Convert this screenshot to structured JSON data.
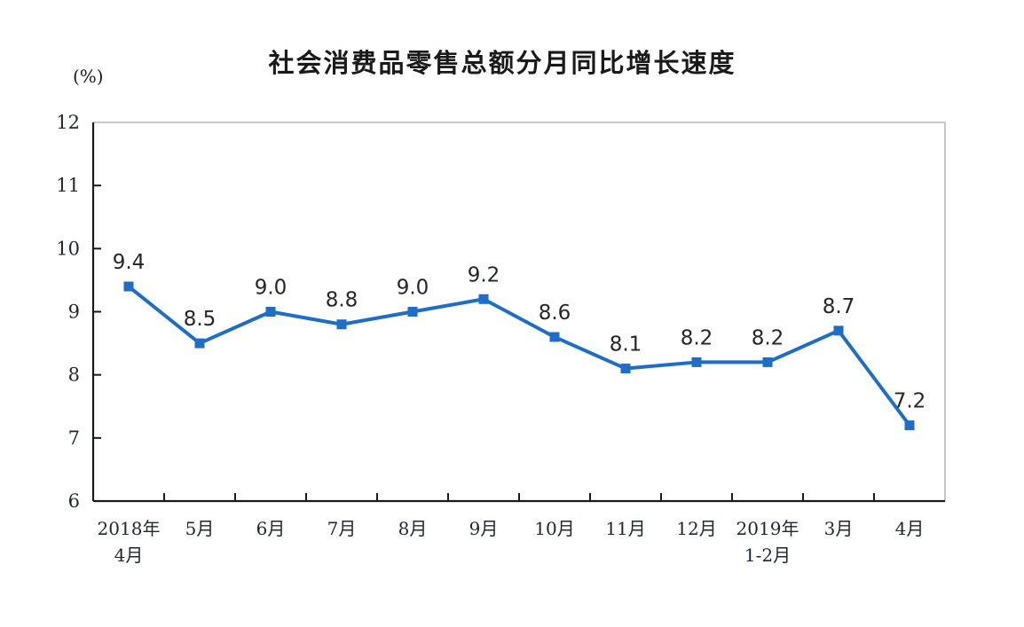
{
  "chart_data": {
    "type": "line",
    "title": "社会消费品零售总额分月同比增长速度",
    "y_axis_unit": "(%)",
    "categories": [
      [
        "2018年",
        "4月"
      ],
      [
        "5月"
      ],
      [
        "6月"
      ],
      [
        "7月"
      ],
      [
        "8月"
      ],
      [
        "9月"
      ],
      [
        "10月"
      ],
      [
        "11月"
      ],
      [
        "12月"
      ],
      [
        "2019年",
        "1-2月"
      ],
      [
        "3月"
      ],
      [
        "4月"
      ]
    ],
    "values": [
      9.4,
      8.5,
      9.0,
      8.8,
      9.0,
      9.2,
      8.6,
      8.1,
      8.2,
      8.2,
      8.7,
      7.2
    ],
    "point_labels": [
      "9.4",
      "8.5",
      "9.0",
      "8.8",
      "9.0",
      "9.2",
      "8.6",
      "8.1",
      "8.2",
      "8.2",
      "8.7",
      "7.2"
    ],
    "ylim": [
      6,
      12
    ],
    "yticks": [
      6,
      7,
      8,
      9,
      10,
      11,
      12
    ],
    "grid": false,
    "legend": "none",
    "line_color": "#1f6ec6",
    "marker": "square",
    "axis_color": "#1a1a1a",
    "frame_color": "#b8b8b8",
    "tick_label_color": "#1f2630",
    "data_label_color": "#262626"
  }
}
